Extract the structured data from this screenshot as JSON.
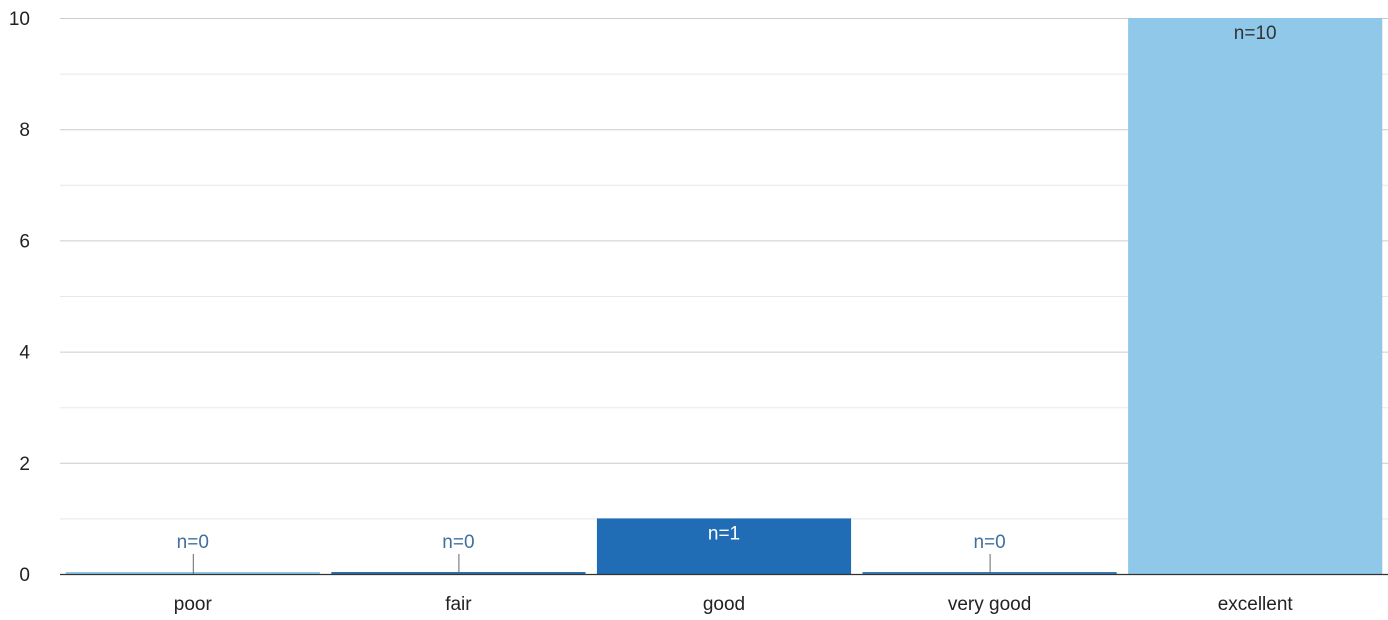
{
  "chart_data": {
    "type": "bar",
    "title": "",
    "xlabel": "",
    "ylabel": "",
    "categories": [
      "poor",
      "fair",
      "good",
      "very good",
      "excellent"
    ],
    "values": [
      0,
      0,
      1,
      0,
      10
    ],
    "data_labels": [
      "n=0",
      "n=0",
      "n=1",
      "n=0",
      "n=10"
    ],
    "ylim": [
      0,
      10
    ],
    "y_ticks": [
      0,
      2,
      4,
      6,
      8,
      10
    ],
    "y_minor_ticks": [
      1,
      3,
      5,
      7,
      9
    ],
    "grid": true,
    "legend": "none",
    "bar_colors": [
      "#8fc7ea",
      "#2c6fb0",
      "#216db5",
      "#3a7ab8",
      "#90c8ea"
    ],
    "label_colors": [
      "#3f6f9c",
      "#3f6f9c",
      "#ffffff",
      "#3f6f9c",
      "#333333"
    ],
    "grid_color": "#cccccc",
    "minor_grid_color": "#e8e8e8",
    "axis_color": "#333333"
  }
}
